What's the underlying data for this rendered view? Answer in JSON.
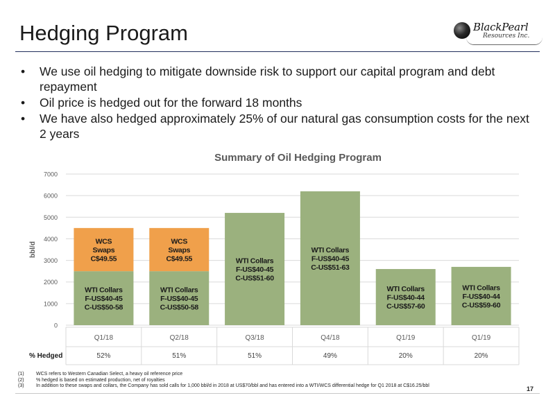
{
  "slide": {
    "title": "Hedging Program",
    "page_number": "17"
  },
  "logo": {
    "name": "BlackPearl",
    "sub": "Resources Inc."
  },
  "bullets": [
    "We use oil hedging to mitigate downside risk to support our capital program and debt repayment",
    "Oil price is hedged out for the forward 18 months",
    "We have also hedged approximately 25% of our natural gas consumption costs for the next 2 years"
  ],
  "footnotes": [
    {
      "num": "(1)",
      "text": "WCS refers to Western Canadian Select, a heavy oil reference price"
    },
    {
      "num": "(2)",
      "text": "% hedged is based on estimated production, net of royalties"
    },
    {
      "num": "(3)",
      "text": "In addition to these swaps and collars, the Company has sold calls for 1,000 bbl/d in 2018 at US$70/bbl and has entered into a WTI/WCS differential hedge for Q1 2018 at C$16.25/bbl"
    }
  ],
  "colors": {
    "wti": "#9bb17e",
    "wcs": "#f0a04b",
    "title_text": "#595959",
    "axis_text": "#595959"
  },
  "chart_data": {
    "type": "bar",
    "stacked": true,
    "title": "Summary of Oil Hedging Program",
    "xlabel": "",
    "ylabel": "bbl/d",
    "ylim": [
      0,
      7000
    ],
    "yticks": [
      0,
      1000,
      2000,
      3000,
      4000,
      5000,
      6000,
      7000
    ],
    "grid": true,
    "categories": [
      "Q1/18",
      "Q2/18",
      "Q3/18",
      "Q4/18",
      "Q1/19",
      "Q1/19"
    ],
    "series": [
      {
        "name": "WTI Collars",
        "color": "#9bb17e",
        "values": [
          2500,
          2500,
          5200,
          6200,
          2600,
          2700
        ],
        "labels": [
          [
            "WTI Collars",
            "F-US$40-45",
            "C-US$50-58"
          ],
          [
            "WTI Collars",
            "F-US$40-45",
            "C-US$50-58"
          ],
          [
            "WTI Collars",
            "F-US$40-45",
            "C-US$51-60"
          ],
          [
            "WTI Collars",
            "F-US$40-45",
            "C-US$51-63"
          ],
          [
            "WTI Collars",
            "F-US$40-44",
            "C-US$57-60"
          ],
          [
            "WTI Collars",
            "F-US$40-44",
            "C-US$59-60"
          ]
        ]
      },
      {
        "name": "WCS Swaps",
        "color": "#f0a04b",
        "values": [
          2000,
          2000,
          0,
          0,
          0,
          0
        ],
        "labels": [
          [
            "WCS",
            "Swaps",
            "C$49.55"
          ],
          [
            "WCS",
            "Swaps",
            "C$49.55"
          ],
          [],
          [],
          [],
          []
        ]
      }
    ],
    "table": {
      "row_label": "% Hedged",
      "values": [
        "52%",
        "51%",
        "51%",
        "49%",
        "20%",
        "20%"
      ]
    }
  }
}
